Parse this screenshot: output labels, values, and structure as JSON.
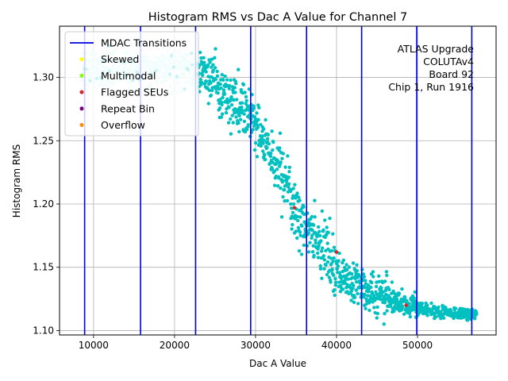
{
  "chart_data": {
    "type": "scatter",
    "title": "Histogram RMS vs Dac A Value for Channel 7",
    "xlabel": "Dac A Value",
    "ylabel": "Histogram RMS",
    "xlim": [
      5800,
      59700
    ],
    "ylim": [
      1.0965,
      1.3405
    ],
    "x_ticks": [
      10000,
      20000,
      30000,
      40000,
      50000
    ],
    "x_tick_labels": [
      "10000",
      "20000",
      "30000",
      "40000",
      "50000"
    ],
    "y_ticks": [
      1.1,
      1.15,
      1.2,
      1.25,
      1.3
    ],
    "y_tick_labels": [
      "1.10",
      "1.15",
      "1.20",
      "1.25",
      "1.30"
    ],
    "grid": true,
    "legend_position": "top-left",
    "mdac_transitions": [
      8900,
      15800,
      22600,
      29400,
      36300,
      43100,
      49900,
      56700
    ],
    "legend": [
      {
        "label": "MDAC Transitions",
        "kind": "line",
        "color": "#0000dd"
      },
      {
        "label": "Skewed",
        "kind": "dot",
        "color": "#ffff00"
      },
      {
        "label": "Multimodal",
        "kind": "dot",
        "color": "#7fff00"
      },
      {
        "label": "Flagged SEUs",
        "kind": "dot",
        "color": "#d62728"
      },
      {
        "label": "Repeat Bin",
        "kind": "dot",
        "color": "#800080"
      },
      {
        "label": "Overflow",
        "kind": "dot",
        "color": "#ff8c00"
      }
    ],
    "annotation": [
      "ATLAS Upgrade",
      "COLUTAv4",
      "Board 92",
      "Chip 1, Run 1916"
    ],
    "series_color": "#00c0c0",
    "light_series_color": "#c8f4f4",
    "flagged_points": [
      [
        34800,
        1.197
      ],
      [
        40000,
        1.162
      ],
      [
        48600,
        1.12
      ]
    ],
    "trend": [
      [
        8500,
        1.305
      ],
      [
        12000,
        1.306
      ],
      [
        16000,
        1.307
      ],
      [
        20000,
        1.307
      ],
      [
        22600,
        1.306
      ],
      [
        24500,
        1.298
      ],
      [
        26500,
        1.285
      ],
      [
        28500,
        1.277
      ],
      [
        30000,
        1.262
      ],
      [
        31500,
        1.245
      ],
      [
        33000,
        1.225
      ],
      [
        34500,
        1.2
      ],
      [
        36000,
        1.185
      ],
      [
        37500,
        1.175
      ],
      [
        39000,
        1.158
      ],
      [
        40500,
        1.145
      ],
      [
        42000,
        1.138
      ],
      [
        44000,
        1.132
      ],
      [
        46000,
        1.127
      ],
      [
        48000,
        1.122
      ],
      [
        50000,
        1.117
      ],
      [
        53000,
        1.114
      ],
      [
        57000,
        1.113
      ]
    ]
  }
}
